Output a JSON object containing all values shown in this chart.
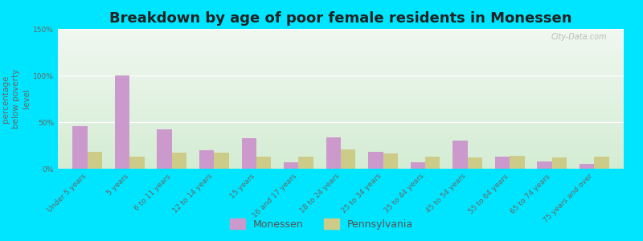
{
  "title": "Breakdown by age of poor female residents in Monessen",
  "ylabel": "percentage\nbelow poverty\nlevel",
  "categories": [
    "Under 5 years",
    "5 years",
    "6 to 11 years",
    "12 to 14 years",
    "15 years",
    "16 and 17 years",
    "18 to 24 years",
    "25 to 34 years",
    "35 to 44 years",
    "45 to 54 years",
    "55 to 64 years",
    "65 to 74 years",
    "75 years and over"
  ],
  "monessen": [
    46,
    100,
    42,
    20,
    33,
    7,
    34,
    18,
    7,
    30,
    13,
    8,
    5
  ],
  "pennsylvania": [
    18,
    13,
    17,
    17,
    13,
    13,
    21,
    16,
    13,
    12,
    14,
    12,
    13
  ],
  "monessen_color": "#cc99cc",
  "pennsylvania_color": "#cccc88",
  "background_outer": "#00e5ff",
  "background_plot_top": "#f0f8f0",
  "background_plot_bottom": "#d4ecd4",
  "ylim": [
    0,
    150
  ],
  "yticks": [
    0,
    50,
    100,
    150
  ],
  "ytick_labels": [
    "0%",
    "50%",
    "100%",
    "150%"
  ],
  "bar_width": 0.35,
  "title_fontsize": 13,
  "ylabel_fontsize": 7.5,
  "tick_fontsize": 6.5,
  "legend_fontsize": 9
}
